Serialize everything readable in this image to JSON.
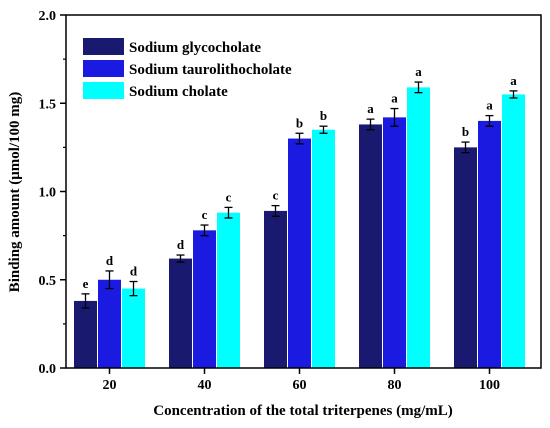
{
  "chart_data": {
    "type": "bar",
    "xlabel": "Concentration of the total triterpenes (mg/mL)",
    "ylabel": "Binding amount (μmol/100 mg)",
    "ylim": [
      0.0,
      2.0
    ],
    "yticks": [
      "0.0",
      "0.5",
      "1.0",
      "1.5",
      "2.0"
    ],
    "categories": [
      "20",
      "40",
      "60",
      "80",
      "100"
    ],
    "legend_position": "top-left",
    "series": [
      {
        "name": "Sodium glycocholate",
        "color": "#191970",
        "values": [
          0.38,
          0.62,
          0.89,
          1.38,
          1.25
        ],
        "errors": [
          0.04,
          0.02,
          0.03,
          0.03,
          0.03
        ],
        "labels": [
          "e",
          "d",
          "c",
          "a",
          "b"
        ]
      },
      {
        "name": "Sodium taurolithocholate",
        "color": "#1a1ae0",
        "values": [
          0.5,
          0.78,
          1.3,
          1.42,
          1.4
        ],
        "errors": [
          0.05,
          0.03,
          0.03,
          0.05,
          0.03
        ],
        "labels": [
          "d",
          "c",
          "b",
          "a",
          "a"
        ]
      },
      {
        "name": "Sodium cholate",
        "color": "#00ffff",
        "values": [
          0.45,
          0.88,
          1.35,
          1.59,
          1.55
        ],
        "errors": [
          0.04,
          0.03,
          0.02,
          0.03,
          0.02
        ],
        "labels": [
          "d",
          "c",
          "b",
          "a",
          "a"
        ]
      }
    ]
  }
}
